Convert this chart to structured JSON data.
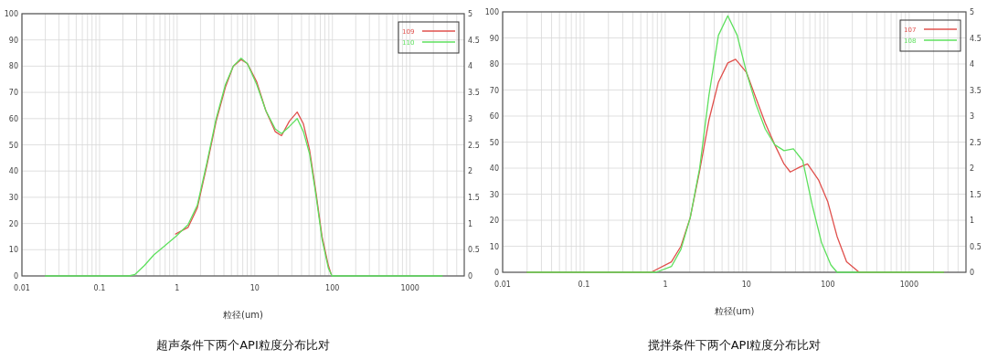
{
  "chart_data": [
    {
      "type": "line",
      "title": "超声条件下两个API粒度分布比对",
      "xlabel": "粒径(um)",
      "log": "x",
      "grid": true,
      "legend": "top right",
      "line_style": "solid",
      "xlim": [
        0.01,
        5000
      ],
      "xticks": [
        0.01,
        0.1,
        1,
        10,
        100,
        1000
      ],
      "ylim": [
        0,
        100
      ],
      "yticks": [
        0,
        10,
        20,
        30,
        40,
        50,
        60,
        70,
        80,
        90,
        100
      ],
      "y2lim": [
        0,
        5
      ],
      "y2ticks": [
        0,
        0.5,
        1,
        1.5,
        2,
        2.5,
        3,
        3.5,
        4,
        4.5,
        5
      ],
      "series": [
        {
          "name": "109",
          "color": "#e0504c",
          "x": [
            0.955,
            1.38,
            1.82,
            2.41,
            3.18,
            4.19,
            5.28,
            6.66,
            8.01,
            10.6,
            13.9,
            18.4,
            22.1,
            27.9,
            35.2,
            42.3,
            50.9,
            61.3,
            73.6,
            88.7,
            96
          ],
          "values": [
            16,
            18.5,
            26,
            42,
            59,
            72,
            80,
            82.5,
            81,
            74,
            63,
            55,
            53.5,
            59,
            62.5,
            58,
            48,
            32,
            15,
            4,
            0.8
          ]
        },
        {
          "name": "110",
          "color": "#5ee05e",
          "x": [
            0.02,
            0.239,
            0.287,
            0.379,
            0.5,
            0.66,
            0.955,
            1.38,
            1.82,
            2.41,
            3.18,
            4.19,
            5.28,
            6.66,
            8.01,
            10.6,
            13.9,
            18.4,
            22.1,
            27.9,
            35.2,
            42.3,
            50.9,
            61.3,
            73.6,
            88.7,
            99,
            2600
          ],
          "values": [
            0,
            0,
            0.6,
            4,
            8,
            11,
            15,
            19.5,
            27,
            43,
            60,
            73,
            80,
            83,
            81,
            73,
            63,
            56,
            54.3,
            57,
            60,
            55,
            46.5,
            31,
            14,
            3,
            0,
            0
          ]
        }
      ]
    },
    {
      "type": "line",
      "title": "搅拌条件下两个API粒度分布比对",
      "xlabel": "粒径(um)",
      "log": "x",
      "grid": true,
      "legend": "top right",
      "line_style": "solid",
      "xlim": [
        0.01,
        5000
      ],
      "xticks": [
        0.01,
        0.1,
        1,
        10,
        100,
        1000
      ],
      "ylim": [
        0,
        100
      ],
      "yticks": [
        0,
        10,
        20,
        30,
        40,
        50,
        60,
        70,
        80,
        90,
        100
      ],
      "y2lim": [
        0,
        5
      ],
      "y2ticks": [
        0,
        0.5,
        1,
        1.5,
        2,
        2.5,
        3,
        3.5,
        4,
        4.5,
        5
      ],
      "series": [
        {
          "name": "107",
          "color": "#e0504c",
          "x": [
            0.02,
            0.67,
            1.19,
            1.56,
            2.03,
            2.65,
            3.45,
            4.51,
            5.88,
            7.33,
            10,
            13,
            17,
            22.2,
            28.9,
            34.5,
            45.1,
            56.2,
            76.7,
            100,
            130,
            170,
            243,
            2650
          ],
          "values": [
            0,
            0,
            4,
            10,
            21,
            39,
            58.5,
            73,
            80.4,
            81.8,
            76.7,
            67,
            57.3,
            49,
            41.6,
            38.5,
            40.4,
            41.6,
            35.5,
            27,
            13.7,
            4,
            0,
            0
          ]
        },
        {
          "name": "108",
          "color": "#5ee05e",
          "x": [
            0.02,
            0.77,
            1.19,
            1.56,
            2.03,
            2.65,
            3.45,
            4.51,
            5.88,
            7.67,
            10,
            13,
            17,
            22.2,
            28.9,
            37.7,
            49.2,
            64.2,
            83.8,
            109,
            130,
            2650
          ],
          "values": [
            0,
            0,
            2.2,
            8.8,
            21,
            40,
            68,
            91,
            98.5,
            91,
            76.7,
            64.6,
            55,
            49,
            46.7,
            47.4,
            42.8,
            25.8,
            11.3,
            2.8,
            0,
            0
          ]
        }
      ]
    }
  ]
}
